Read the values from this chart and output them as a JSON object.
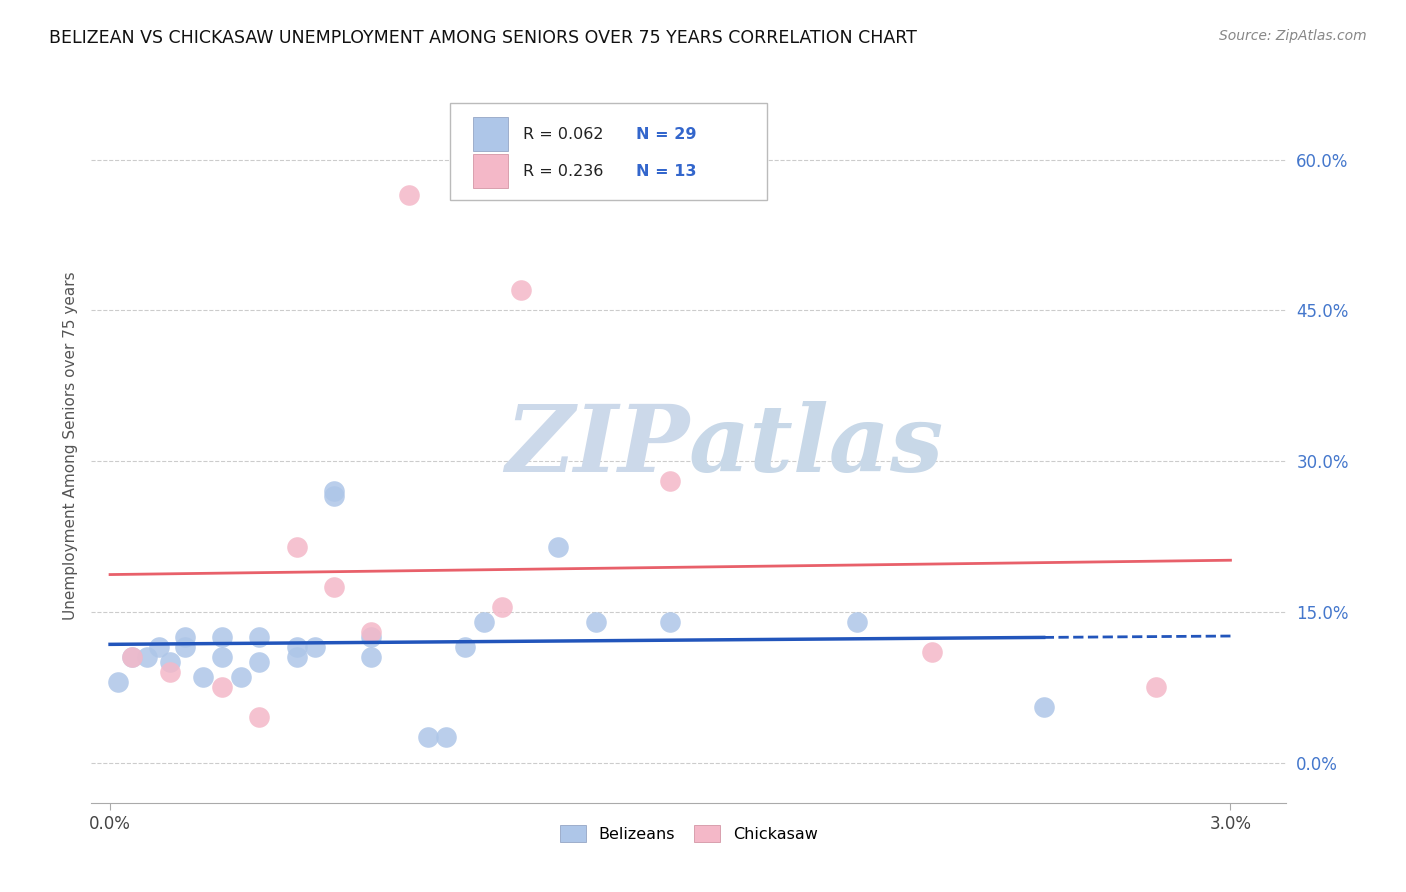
{
  "title": "BELIZEAN VS CHICKASAW UNEMPLOYMENT AMONG SENIORS OVER 75 YEARS CORRELATION CHART",
  "source": "Source: ZipAtlas.com",
  "ylabel": "Unemployment Among Seniors over 75 years",
  "ytick_labels": [
    "0.0%",
    "15.0%",
    "30.0%",
    "45.0%",
    "60.0%"
  ],
  "ytick_vals": [
    0.0,
    0.15,
    0.3,
    0.45,
    0.6
  ],
  "xtick_labels": [
    "0.0%",
    "3.0%"
  ],
  "xtick_vals": [
    0.0,
    0.03
  ],
  "xlim": [
    -0.0005,
    0.0315
  ],
  "ylim": [
    -0.04,
    0.67
  ],
  "belizean_R": "0.062",
  "belizean_N": "29",
  "chickasaw_R": "0.236",
  "chickasaw_N": "13",
  "belizean_scatter_color": "#aec6e8",
  "chickasaw_scatter_color": "#f4b8c8",
  "belizean_line_color": "#2255bb",
  "chickasaw_line_color": "#e8606a",
  "watermark_zip_color": "#ccd9ea",
  "watermark_atlas_color": "#c8d8e8",
  "background_color": "#ffffff",
  "grid_color": "#cccccc",
  "legend_label_belizean": "Belizeans",
  "legend_label_chickasaw": "Chickasaw",
  "belizean_x": [
    0.0002,
    0.0006,
    0.001,
    0.0013,
    0.0016,
    0.002,
    0.002,
    0.0025,
    0.003,
    0.003,
    0.0035,
    0.004,
    0.004,
    0.005,
    0.005,
    0.0055,
    0.006,
    0.006,
    0.007,
    0.007,
    0.0085,
    0.009,
    0.0095,
    0.01,
    0.012,
    0.013,
    0.015,
    0.02,
    0.025
  ],
  "belizean_y": [
    0.08,
    0.105,
    0.105,
    0.115,
    0.1,
    0.125,
    0.115,
    0.085,
    0.125,
    0.105,
    0.085,
    0.1,
    0.125,
    0.115,
    0.105,
    0.115,
    0.265,
    0.27,
    0.125,
    0.105,
    0.025,
    0.025,
    0.115,
    0.14,
    0.215,
    0.14,
    0.14,
    0.14,
    0.055
  ],
  "chickasaw_x": [
    0.0006,
    0.0016,
    0.003,
    0.004,
    0.005,
    0.006,
    0.007,
    0.008,
    0.0105,
    0.011,
    0.015,
    0.022,
    0.028
  ],
  "chickasaw_y": [
    0.105,
    0.09,
    0.075,
    0.045,
    0.215,
    0.175,
    0.13,
    0.565,
    0.155,
    0.47,
    0.28,
    0.11,
    0.075
  ]
}
